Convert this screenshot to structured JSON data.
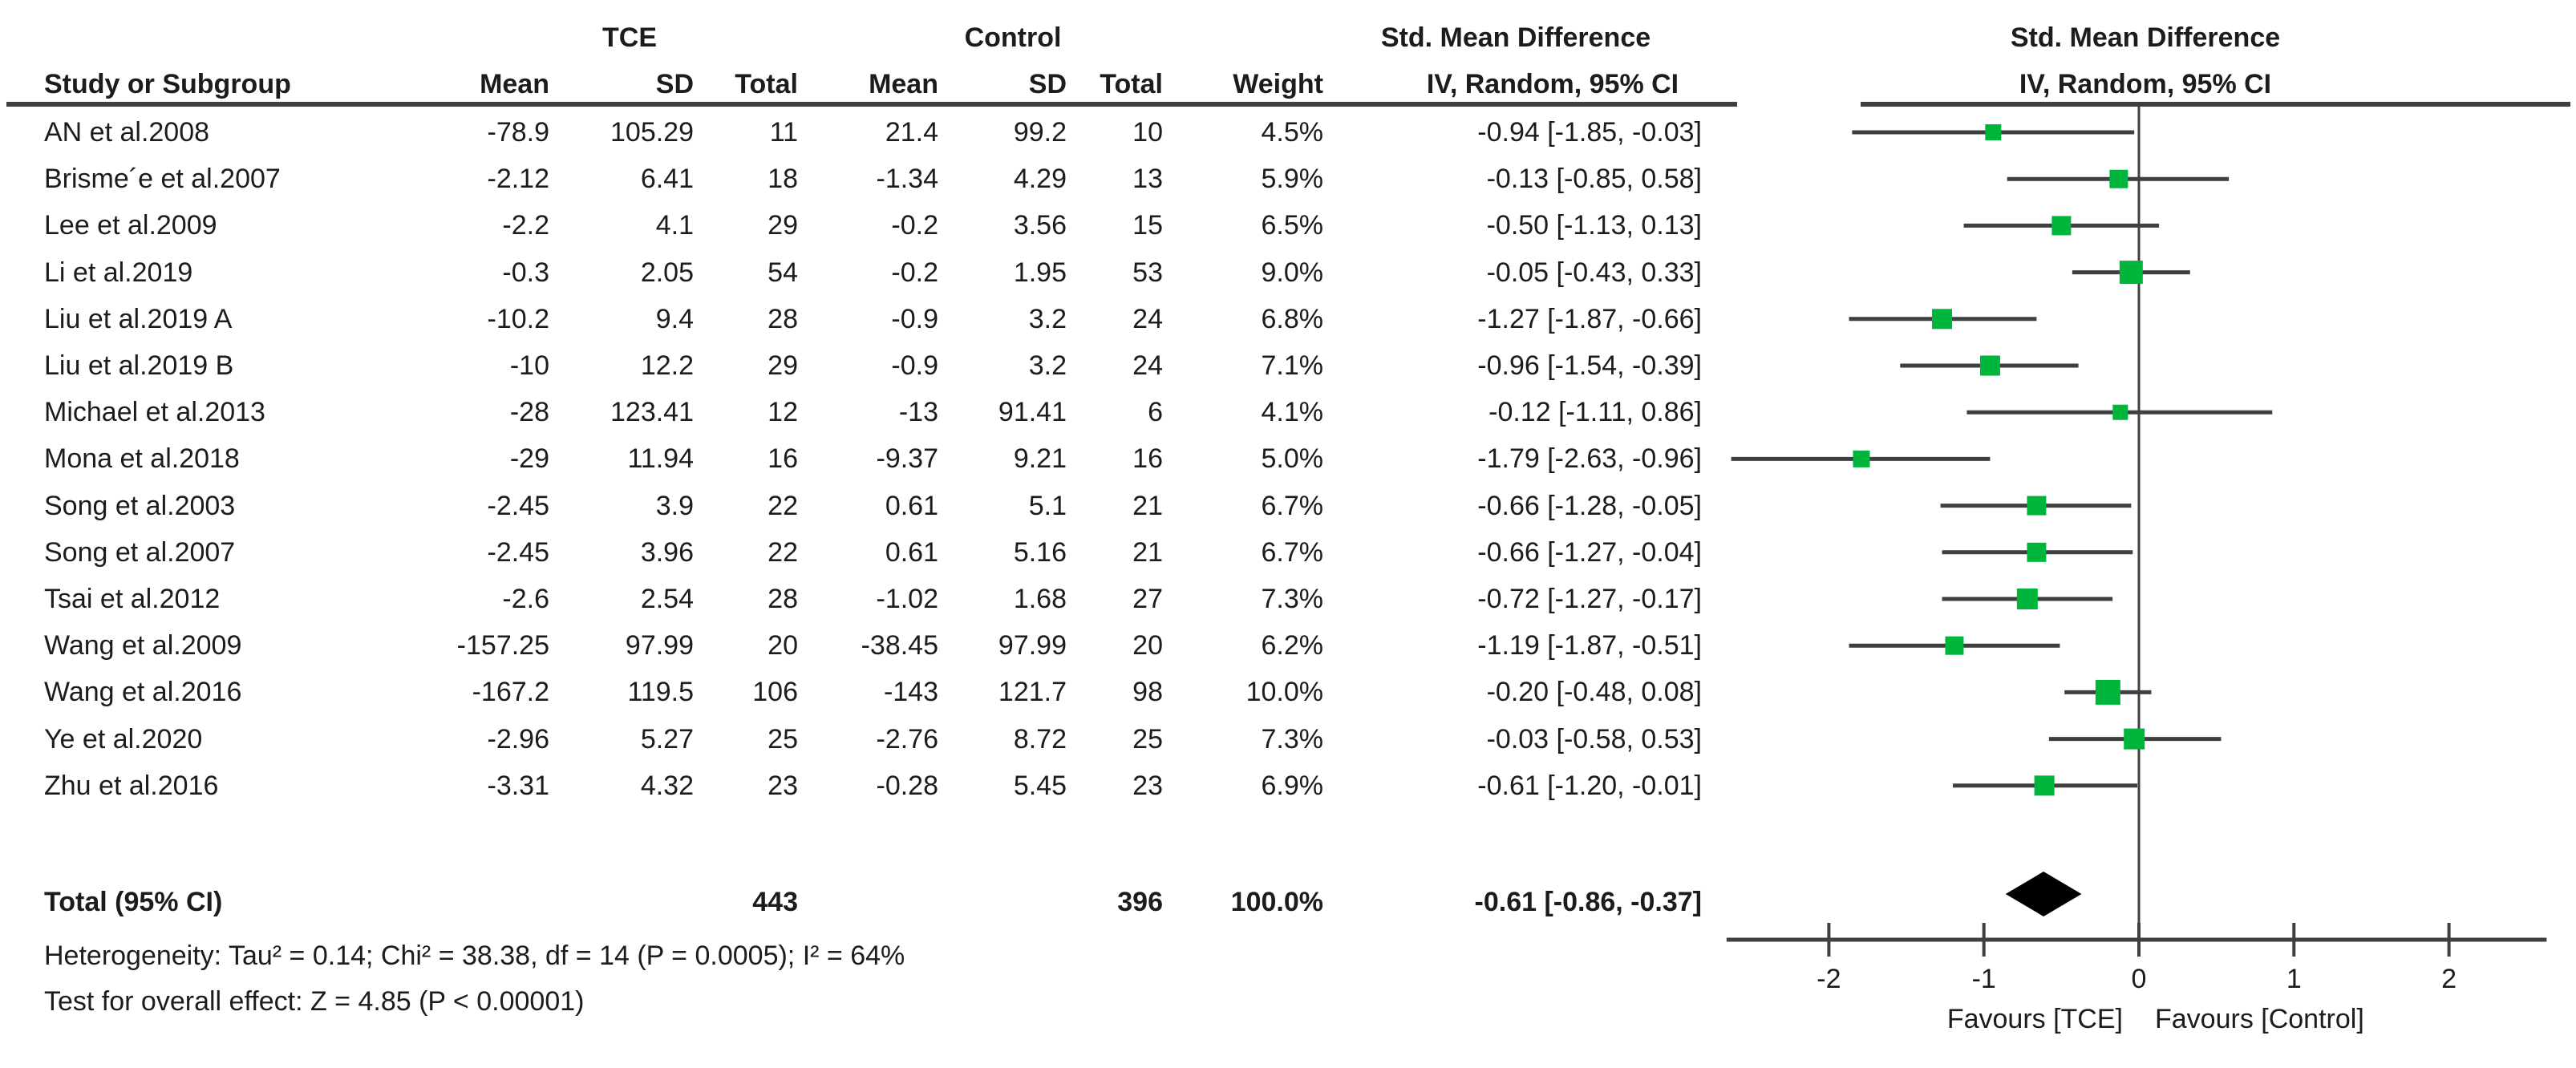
{
  "header": {
    "group_tce": "TCE",
    "group_control": "Control",
    "smd_text_col_title": "Std. Mean Difference",
    "smd_plot_col_title": "Std. Mean Difference",
    "col_study": "Study or Subgroup",
    "col_mean_tce": "Mean",
    "col_sd_tce": "SD",
    "col_total_tce": "Total",
    "col_mean_control": "Mean",
    "col_sd_control": "SD",
    "col_total_control": "Total",
    "col_weight": "Weight",
    "col_ci_text": "IV, Random, 95% CI",
    "col_ci_plot": "IV, Random, 95% CI"
  },
  "chart_data": {
    "type": "forest",
    "effect_measure": "Std. Mean Difference (IV, Random, 95% CI)",
    "studies": [
      {
        "name": "AN et al.2008",
        "tce": {
          "mean": "-78.9",
          "sd": "105.29",
          "total": "11"
        },
        "control": {
          "mean": "21.4",
          "sd": "99.2",
          "total": "10"
        },
        "weight": "4.5%",
        "weight_pct": 4.5,
        "ci_label": "-0.94 [-1.85, -0.03]",
        "est": -0.94,
        "lo": -1.85,
        "hi": -0.03
      },
      {
        "name": "Brisme´e et al.2007",
        "tce": {
          "mean": "-2.12",
          "sd": "6.41",
          "total": "18"
        },
        "control": {
          "mean": "-1.34",
          "sd": "4.29",
          "total": "13"
        },
        "weight": "5.9%",
        "weight_pct": 5.9,
        "ci_label": "-0.13 [-0.85, 0.58]",
        "est": -0.13,
        "lo": -0.85,
        "hi": 0.58
      },
      {
        "name": "Lee et al.2009",
        "tce": {
          "mean": "-2.2",
          "sd": "4.1",
          "total": "29"
        },
        "control": {
          "mean": "-0.2",
          "sd": "3.56",
          "total": "15"
        },
        "weight": "6.5%",
        "weight_pct": 6.5,
        "ci_label": "-0.50 [-1.13, 0.13]",
        "est": -0.5,
        "lo": -1.13,
        "hi": 0.13
      },
      {
        "name": "Li et al.2019",
        "tce": {
          "mean": "-0.3",
          "sd": "2.05",
          "total": "54"
        },
        "control": {
          "mean": "-0.2",
          "sd": "1.95",
          "total": "53"
        },
        "weight": "9.0%",
        "weight_pct": 9.0,
        "ci_label": "-0.05 [-0.43, 0.33]",
        "est": -0.05,
        "lo": -0.43,
        "hi": 0.33
      },
      {
        "name": "Liu et al.2019 A",
        "tce": {
          "mean": "-10.2",
          "sd": "9.4",
          "total": "28"
        },
        "control": {
          "mean": "-0.9",
          "sd": "3.2",
          "total": "24"
        },
        "weight": "6.8%",
        "weight_pct": 6.8,
        "ci_label": "-1.27 [-1.87, -0.66]",
        "est": -1.27,
        "lo": -1.87,
        "hi": -0.66
      },
      {
        "name": "Liu et al.2019 B",
        "tce": {
          "mean": "-10",
          "sd": "12.2",
          "total": "29"
        },
        "control": {
          "mean": "-0.9",
          "sd": "3.2",
          "total": "24"
        },
        "weight": "7.1%",
        "weight_pct": 7.1,
        "ci_label": "-0.96 [-1.54, -0.39]",
        "est": -0.96,
        "lo": -1.54,
        "hi": -0.39
      },
      {
        "name": "Michael et al.2013",
        "tce": {
          "mean": "-28",
          "sd": "123.41",
          "total": "12"
        },
        "control": {
          "mean": "-13",
          "sd": "91.41",
          "total": "6"
        },
        "weight": "4.1%",
        "weight_pct": 4.1,
        "ci_label": "-0.12 [-1.11, 0.86]",
        "est": -0.12,
        "lo": -1.11,
        "hi": 0.86
      },
      {
        "name": "Mona et al.2018",
        "tce": {
          "mean": "-29",
          "sd": "11.94",
          "total": "16"
        },
        "control": {
          "mean": "-9.37",
          "sd": "9.21",
          "total": "16"
        },
        "weight": "5.0%",
        "weight_pct": 5.0,
        "ci_label": "-1.79 [-2.63, -0.96]",
        "est": -1.79,
        "lo": -2.63,
        "hi": -0.96
      },
      {
        "name": "Song et al.2003",
        "tce": {
          "mean": "-2.45",
          "sd": "3.9",
          "total": "22"
        },
        "control": {
          "mean": "0.61",
          "sd": "5.1",
          "total": "21"
        },
        "weight": "6.7%",
        "weight_pct": 6.7,
        "ci_label": "-0.66 [-1.28, -0.05]",
        "est": -0.66,
        "lo": -1.28,
        "hi": -0.05
      },
      {
        "name": "Song et al.2007",
        "tce": {
          "mean": "-2.45",
          "sd": "3.96",
          "total": "22"
        },
        "control": {
          "mean": "0.61",
          "sd": "5.16",
          "total": "21"
        },
        "weight": "6.7%",
        "weight_pct": 6.7,
        "ci_label": "-0.66 [-1.27, -0.04]",
        "est": -0.66,
        "lo": -1.27,
        "hi": -0.04
      },
      {
        "name": "Tsai et al.2012",
        "tce": {
          "mean": "-2.6",
          "sd": "2.54",
          "total": "28"
        },
        "control": {
          "mean": "-1.02",
          "sd": "1.68",
          "total": "27"
        },
        "weight": "7.3%",
        "weight_pct": 7.3,
        "ci_label": "-0.72 [-1.27, -0.17]",
        "est": -0.72,
        "lo": -1.27,
        "hi": -0.17
      },
      {
        "name": "Wang et al.2009",
        "tce": {
          "mean": "-157.25",
          "sd": "97.99",
          "total": "20"
        },
        "control": {
          "mean": "-38.45",
          "sd": "97.99",
          "total": "20"
        },
        "weight": "6.2%",
        "weight_pct": 6.2,
        "ci_label": "-1.19 [-1.87, -0.51]",
        "est": -1.19,
        "lo": -1.87,
        "hi": -0.51
      },
      {
        "name": "Wang et al.2016",
        "tce": {
          "mean": "-167.2",
          "sd": "119.5",
          "total": "106"
        },
        "control": {
          "mean": "-143",
          "sd": "121.7",
          "total": "98"
        },
        "weight": "10.0%",
        "weight_pct": 10.0,
        "ci_label": "-0.20 [-0.48, 0.08]",
        "est": -0.2,
        "lo": -0.48,
        "hi": 0.08
      },
      {
        "name": "Ye et al.2020",
        "tce": {
          "mean": "-2.96",
          "sd": "5.27",
          "total": "25"
        },
        "control": {
          "mean": "-2.76",
          "sd": "8.72",
          "total": "25"
        },
        "weight": "7.3%",
        "weight_pct": 7.3,
        "ci_label": "-0.03 [-0.58, 0.53]",
        "est": -0.03,
        "lo": -0.58,
        "hi": 0.53
      },
      {
        "name": "Zhu et al.2016",
        "tce": {
          "mean": "-3.31",
          "sd": "4.32",
          "total": "23"
        },
        "control": {
          "mean": "-0.28",
          "sd": "5.45",
          "total": "23"
        },
        "weight": "6.9%",
        "weight_pct": 6.9,
        "ci_label": "-0.61 [-1.20, -0.01]",
        "est": -0.61,
        "lo": -1.2,
        "hi": -0.01
      }
    ],
    "total": {
      "label": "Total (95% CI)",
      "tce_total": "443",
      "control_total": "396",
      "weight": "100.0%",
      "ci_label": "-0.61 [-0.86, -0.37]",
      "est": -0.61,
      "lo": -0.86,
      "hi": -0.37
    },
    "heterogeneity": "Heterogeneity: Tau² = 0.14; Chi² = 38.38, df = 14 (P = 0.0005); I² = 64%",
    "overall_effect": "Test for overall effect: Z = 4.85 (P < 0.00001)",
    "axis": {
      "ticks": [
        -2,
        -1,
        0,
        1,
        2
      ],
      "min": -2.66,
      "max": 2.63,
      "favours_left": "Favours [TCE]",
      "favours_right": "Favours [Control]"
    },
    "colors": {
      "marker_green": "#00b53c",
      "line_gray": "#3f3f3f",
      "diamond_black": "#000000",
      "text": "#1c1c1c"
    }
  }
}
